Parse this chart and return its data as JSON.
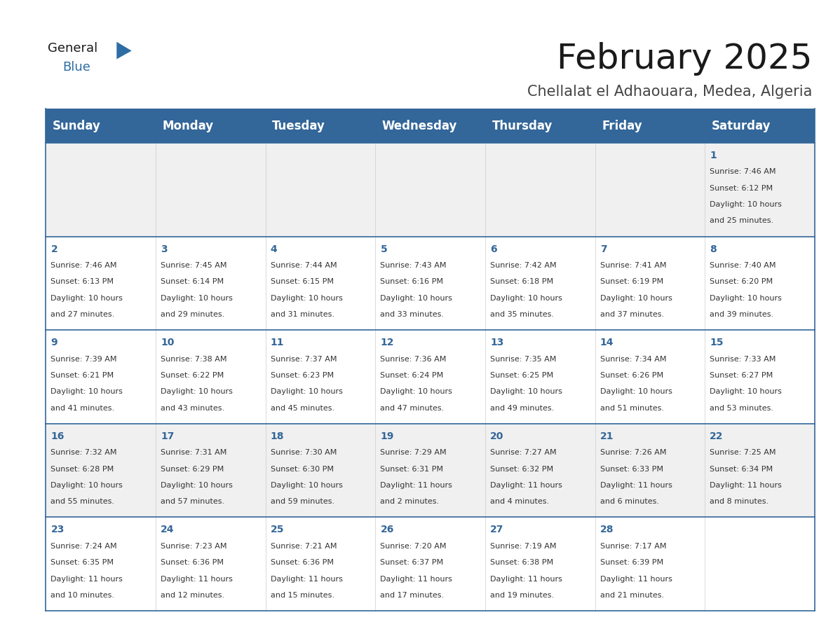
{
  "title": "February 2025",
  "subtitle": "Chellalat el Adhaouara, Medea, Algeria",
  "days_of_week": [
    "Sunday",
    "Monday",
    "Tuesday",
    "Wednesday",
    "Thursday",
    "Friday",
    "Saturday"
  ],
  "header_bg": "#336699",
  "header_text_color": "#FFFFFF",
  "row0_bg": "#F0F0F0",
  "row1_bg": "#FFFFFF",
  "row2_bg": "#FFFFFF",
  "row3_bg": "#F0F0F0",
  "row4_bg": "#FFFFFF",
  "cell_text_color": "#333333",
  "day_number_color": "#336699",
  "separator_color": "#336699",
  "calendar_data": [
    {
      "day": 1,
      "col": 6,
      "row": 0,
      "sunrise": "7:46 AM",
      "sunset": "6:12 PM",
      "daylight_hours": 10,
      "daylight_minutes": 25
    },
    {
      "day": 2,
      "col": 0,
      "row": 1,
      "sunrise": "7:46 AM",
      "sunset": "6:13 PM",
      "daylight_hours": 10,
      "daylight_minutes": 27
    },
    {
      "day": 3,
      "col": 1,
      "row": 1,
      "sunrise": "7:45 AM",
      "sunset": "6:14 PM",
      "daylight_hours": 10,
      "daylight_minutes": 29
    },
    {
      "day": 4,
      "col": 2,
      "row": 1,
      "sunrise": "7:44 AM",
      "sunset": "6:15 PM",
      "daylight_hours": 10,
      "daylight_minutes": 31
    },
    {
      "day": 5,
      "col": 3,
      "row": 1,
      "sunrise": "7:43 AM",
      "sunset": "6:16 PM",
      "daylight_hours": 10,
      "daylight_minutes": 33
    },
    {
      "day": 6,
      "col": 4,
      "row": 1,
      "sunrise": "7:42 AM",
      "sunset": "6:18 PM",
      "daylight_hours": 10,
      "daylight_minutes": 35
    },
    {
      "day": 7,
      "col": 5,
      "row": 1,
      "sunrise": "7:41 AM",
      "sunset": "6:19 PM",
      "daylight_hours": 10,
      "daylight_minutes": 37
    },
    {
      "day": 8,
      "col": 6,
      "row": 1,
      "sunrise": "7:40 AM",
      "sunset": "6:20 PM",
      "daylight_hours": 10,
      "daylight_minutes": 39
    },
    {
      "day": 9,
      "col": 0,
      "row": 2,
      "sunrise": "7:39 AM",
      "sunset": "6:21 PM",
      "daylight_hours": 10,
      "daylight_minutes": 41
    },
    {
      "day": 10,
      "col": 1,
      "row": 2,
      "sunrise": "7:38 AM",
      "sunset": "6:22 PM",
      "daylight_hours": 10,
      "daylight_minutes": 43
    },
    {
      "day": 11,
      "col": 2,
      "row": 2,
      "sunrise": "7:37 AM",
      "sunset": "6:23 PM",
      "daylight_hours": 10,
      "daylight_minutes": 45
    },
    {
      "day": 12,
      "col": 3,
      "row": 2,
      "sunrise": "7:36 AM",
      "sunset": "6:24 PM",
      "daylight_hours": 10,
      "daylight_minutes": 47
    },
    {
      "day": 13,
      "col": 4,
      "row": 2,
      "sunrise": "7:35 AM",
      "sunset": "6:25 PM",
      "daylight_hours": 10,
      "daylight_minutes": 49
    },
    {
      "day": 14,
      "col": 5,
      "row": 2,
      "sunrise": "7:34 AM",
      "sunset": "6:26 PM",
      "daylight_hours": 10,
      "daylight_minutes": 51
    },
    {
      "day": 15,
      "col": 6,
      "row": 2,
      "sunrise": "7:33 AM",
      "sunset": "6:27 PM",
      "daylight_hours": 10,
      "daylight_minutes": 53
    },
    {
      "day": 16,
      "col": 0,
      "row": 3,
      "sunrise": "7:32 AM",
      "sunset": "6:28 PM",
      "daylight_hours": 10,
      "daylight_minutes": 55
    },
    {
      "day": 17,
      "col": 1,
      "row": 3,
      "sunrise": "7:31 AM",
      "sunset": "6:29 PM",
      "daylight_hours": 10,
      "daylight_minutes": 57
    },
    {
      "day": 18,
      "col": 2,
      "row": 3,
      "sunrise": "7:30 AM",
      "sunset": "6:30 PM",
      "daylight_hours": 10,
      "daylight_minutes": 59
    },
    {
      "day": 19,
      "col": 3,
      "row": 3,
      "sunrise": "7:29 AM",
      "sunset": "6:31 PM",
      "daylight_hours": 11,
      "daylight_minutes": 2
    },
    {
      "day": 20,
      "col": 4,
      "row": 3,
      "sunrise": "7:27 AM",
      "sunset": "6:32 PM",
      "daylight_hours": 11,
      "daylight_minutes": 4
    },
    {
      "day": 21,
      "col": 5,
      "row": 3,
      "sunrise": "7:26 AM",
      "sunset": "6:33 PM",
      "daylight_hours": 11,
      "daylight_minutes": 6
    },
    {
      "day": 22,
      "col": 6,
      "row": 3,
      "sunrise": "7:25 AM",
      "sunset": "6:34 PM",
      "daylight_hours": 11,
      "daylight_minutes": 8
    },
    {
      "day": 23,
      "col": 0,
      "row": 4,
      "sunrise": "7:24 AM",
      "sunset": "6:35 PM",
      "daylight_hours": 11,
      "daylight_minutes": 10
    },
    {
      "day": 24,
      "col": 1,
      "row": 4,
      "sunrise": "7:23 AM",
      "sunset": "6:36 PM",
      "daylight_hours": 11,
      "daylight_minutes": 12
    },
    {
      "day": 25,
      "col": 2,
      "row": 4,
      "sunrise": "7:21 AM",
      "sunset": "6:36 PM",
      "daylight_hours": 11,
      "daylight_minutes": 15
    },
    {
      "day": 26,
      "col": 3,
      "row": 4,
      "sunrise": "7:20 AM",
      "sunset": "6:37 PM",
      "daylight_hours": 11,
      "daylight_minutes": 17
    },
    {
      "day": 27,
      "col": 4,
      "row": 4,
      "sunrise": "7:19 AM",
      "sunset": "6:38 PM",
      "daylight_hours": 11,
      "daylight_minutes": 19
    },
    {
      "day": 28,
      "col": 5,
      "row": 4,
      "sunrise": "7:17 AM",
      "sunset": "6:39 PM",
      "daylight_hours": 11,
      "daylight_minutes": 21
    }
  ],
  "logo_text1": "General",
  "logo_text2": "Blue",
  "logo_color1": "#1a1a1a",
  "logo_color2": "#2E6DA4",
  "title_fontsize": 36,
  "subtitle_fontsize": 15,
  "header_fontsize": 12,
  "day_num_fontsize": 10,
  "cell_text_fontsize": 8
}
